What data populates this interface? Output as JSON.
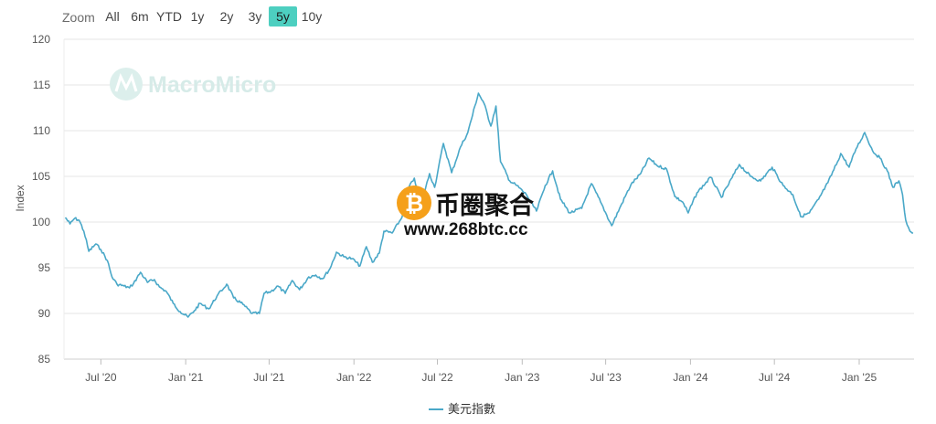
{
  "zoom": {
    "label": "Zoom",
    "buttons": [
      {
        "label": "All",
        "active": false
      },
      {
        "label": "6m",
        "active": false
      },
      {
        "label": "YTD",
        "active": false
      },
      {
        "label": "1y",
        "active": false
      },
      {
        "label": "2y",
        "active": false
      },
      {
        "label": "3y",
        "active": false
      },
      {
        "label": "5y",
        "active": true
      },
      {
        "label": "10y",
        "active": false
      }
    ]
  },
  "watermark": {
    "text": "MacroMicro"
  },
  "overlay": {
    "name": "币圈聚合",
    "url": "www.268btc.cc",
    "badge_glyph": "₿"
  },
  "colors": {
    "line": "#4aa8c8",
    "active_zoom": "#4dcfc0",
    "badge": "#f5a01a",
    "grid": "#e6e6e6"
  },
  "chart_data": {
    "type": "line",
    "title": "",
    "xlabel": "",
    "ylabel": "Index",
    "ylim": [
      85,
      120
    ],
    "xlim": [
      "2020-04-12",
      "2025-04-30"
    ],
    "yticks": [
      85,
      90,
      95,
      100,
      105,
      110,
      115,
      120
    ],
    "xticks": [
      {
        "date": "2020-07-01",
        "label": "Jul '20"
      },
      {
        "date": "2021-01-01",
        "label": "Jan '21"
      },
      {
        "date": "2021-07-01",
        "label": "Jul '21"
      },
      {
        "date": "2022-01-01",
        "label": "Jan '22"
      },
      {
        "date": "2022-07-01",
        "label": "Jul '22"
      },
      {
        "date": "2023-01-01",
        "label": "Jan '23"
      },
      {
        "date": "2023-07-01",
        "label": "Jul '23"
      },
      {
        "date": "2024-01-01",
        "label": "Jan '24"
      },
      {
        "date": "2024-07-01",
        "label": "Jul '24"
      },
      {
        "date": "2025-01-01",
        "label": "Jan '25"
      }
    ],
    "grid": true,
    "legend_position": "bottom-center",
    "series": [
      {
        "name": "美元指數",
        "points": [
          [
            "2020-04-15",
            100.5
          ],
          [
            "2020-04-25",
            99.8
          ],
          [
            "2020-05-05",
            100.4
          ],
          [
            "2020-05-15",
            100.2
          ],
          [
            "2020-05-25",
            99.0
          ],
          [
            "2020-06-05",
            96.8
          ],
          [
            "2020-06-20",
            97.6
          ],
          [
            "2020-07-01",
            97.0
          ],
          [
            "2020-07-15",
            95.8
          ],
          [
            "2020-07-25",
            94.0
          ],
          [
            "2020-08-05",
            93.2
          ],
          [
            "2020-08-20",
            93.0
          ],
          [
            "2020-09-01",
            92.8
          ],
          [
            "2020-09-10",
            93.3
          ],
          [
            "2020-09-25",
            94.5
          ],
          [
            "2020-10-10",
            93.4
          ],
          [
            "2020-10-25",
            93.7
          ],
          [
            "2020-11-05",
            92.9
          ],
          [
            "2020-11-20",
            92.4
          ],
          [
            "2020-12-05",
            91.1
          ],
          [
            "2020-12-20",
            90.2
          ],
          [
            "2021-01-06",
            89.6
          ],
          [
            "2021-01-20",
            90.3
          ],
          [
            "2021-02-01",
            91.1
          ],
          [
            "2021-02-20",
            90.5
          ],
          [
            "2021-03-10",
            91.9
          ],
          [
            "2021-03-31",
            93.2
          ],
          [
            "2021-04-15",
            91.7
          ],
          [
            "2021-05-05",
            91.0
          ],
          [
            "2021-05-25",
            90.0
          ],
          [
            "2021-06-10",
            90.0
          ],
          [
            "2021-06-20",
            92.2
          ],
          [
            "2021-07-05",
            92.4
          ],
          [
            "2021-07-20",
            93.0
          ],
          [
            "2021-08-05",
            92.2
          ],
          [
            "2021-08-20",
            93.6
          ],
          [
            "2021-09-05",
            92.6
          ],
          [
            "2021-09-25",
            94.0
          ],
          [
            "2021-10-10",
            94.2
          ],
          [
            "2021-10-25",
            93.8
          ],
          [
            "2021-11-10",
            94.9
          ],
          [
            "2021-11-24",
            96.7
          ],
          [
            "2021-12-10",
            96.2
          ],
          [
            "2021-12-28",
            96.0
          ],
          [
            "2022-01-14",
            95.2
          ],
          [
            "2022-01-28",
            97.3
          ],
          [
            "2022-02-10",
            95.6
          ],
          [
            "2022-02-25",
            96.6
          ],
          [
            "2022-03-07",
            99.0
          ],
          [
            "2022-03-25",
            98.8
          ],
          [
            "2022-04-15",
            100.5
          ],
          [
            "2022-04-28",
            103.6
          ],
          [
            "2022-05-12",
            104.8
          ],
          [
            "2022-05-26",
            101.8
          ],
          [
            "2022-06-14",
            105.3
          ],
          [
            "2022-06-25",
            103.8
          ],
          [
            "2022-07-14",
            108.6
          ],
          [
            "2022-08-01",
            105.4
          ],
          [
            "2022-08-20",
            108.2
          ],
          [
            "2022-09-05",
            109.8
          ],
          [
            "2022-09-28",
            114.1
          ],
          [
            "2022-10-10",
            113.0
          ],
          [
            "2022-10-25",
            110.5
          ],
          [
            "2022-11-05",
            112.7
          ],
          [
            "2022-11-15",
            106.6
          ],
          [
            "2022-12-05",
            104.5
          ],
          [
            "2022-12-20",
            104.0
          ],
          [
            "2023-01-10",
            103.0
          ],
          [
            "2023-02-01",
            101.2
          ],
          [
            "2023-02-20",
            104.0
          ],
          [
            "2023-03-08",
            105.6
          ],
          [
            "2023-03-25",
            102.5
          ],
          [
            "2023-04-14",
            101.0
          ],
          [
            "2023-05-10",
            101.5
          ],
          [
            "2023-05-31",
            104.2
          ],
          [
            "2023-06-20",
            102.2
          ],
          [
            "2023-07-14",
            99.6
          ],
          [
            "2023-08-05",
            102.0
          ],
          [
            "2023-08-25",
            104.1
          ],
          [
            "2023-09-15",
            105.3
          ],
          [
            "2023-10-03",
            107.0
          ],
          [
            "2023-10-20",
            106.2
          ],
          [
            "2023-11-10",
            105.8
          ],
          [
            "2023-11-28",
            102.8
          ],
          [
            "2023-12-15",
            102.2
          ],
          [
            "2023-12-27",
            101.0
          ],
          [
            "2024-01-15",
            103.2
          ],
          [
            "2024-02-14",
            104.9
          ],
          [
            "2024-03-08",
            102.7
          ],
          [
            "2024-04-16",
            106.3
          ],
          [
            "2024-05-10",
            105.0
          ],
          [
            "2024-06-01",
            104.5
          ],
          [
            "2024-06-26",
            106.0
          ],
          [
            "2024-07-20",
            104.0
          ],
          [
            "2024-08-10",
            103.0
          ],
          [
            "2024-08-27",
            100.6
          ],
          [
            "2024-09-15",
            101.0
          ],
          [
            "2024-10-05",
            102.5
          ],
          [
            "2024-10-25",
            104.3
          ],
          [
            "2024-11-15",
            106.6
          ],
          [
            "2024-11-22",
            107.5
          ],
          [
            "2024-12-10",
            106.0
          ],
          [
            "2024-12-25",
            108.0
          ],
          [
            "2025-01-13",
            109.8
          ],
          [
            "2025-01-30",
            107.8
          ],
          [
            "2025-02-15",
            107.0
          ],
          [
            "2025-03-03",
            105.6
          ],
          [
            "2025-03-15",
            103.8
          ],
          [
            "2025-03-28",
            104.5
          ],
          [
            "2025-04-05",
            103.0
          ],
          [
            "2025-04-12",
            100.2
          ],
          [
            "2025-04-21",
            99.0
          ],
          [
            "2025-04-28",
            98.8
          ]
        ]
      }
    ]
  }
}
